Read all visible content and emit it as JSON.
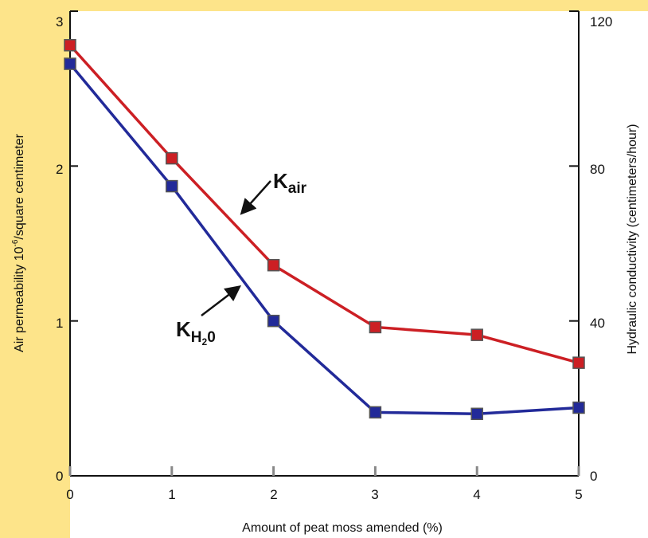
{
  "chart_data": {
    "type": "line",
    "x": [
      0,
      1,
      2,
      3,
      4,
      5
    ],
    "xlabel": "Amount of peat moss amended (%)",
    "xlim": [
      0,
      5
    ],
    "xticks": [
      "0",
      "1",
      "2",
      "3",
      "4",
      "5"
    ],
    "ylabel_left_main": "Air permeability 10",
    "ylabel_left_sup": "-6",
    "ylabel_left_rest": "/square centimeter",
    "ylim_left": [
      0,
      3
    ],
    "yticks_left": [
      "0",
      "1",
      "2",
      "3"
    ],
    "ylabel_right": "Hydraulic conductivity (centimeters/hour)",
    "ylim_right": [
      0,
      120
    ],
    "yticks_right": [
      "0",
      "40",
      "80",
      "120"
    ],
    "series": [
      {
        "name": "Kair",
        "label_main": "K",
        "label_sub": "air",
        "axis": "left",
        "color": "#cc1f24",
        "values": [
          2.78,
          2.05,
          1.36,
          0.96,
          0.91,
          0.73
        ]
      },
      {
        "name": "KH2O",
        "label_main": "K",
        "label_sub": "H",
        "label_sub2": "2",
        "label_sub3": "0",
        "axis": "right",
        "color": "#222a99",
        "values": [
          106.4,
          74.8,
          40.0,
          16.4,
          16.0,
          17.6
        ]
      }
    ]
  }
}
